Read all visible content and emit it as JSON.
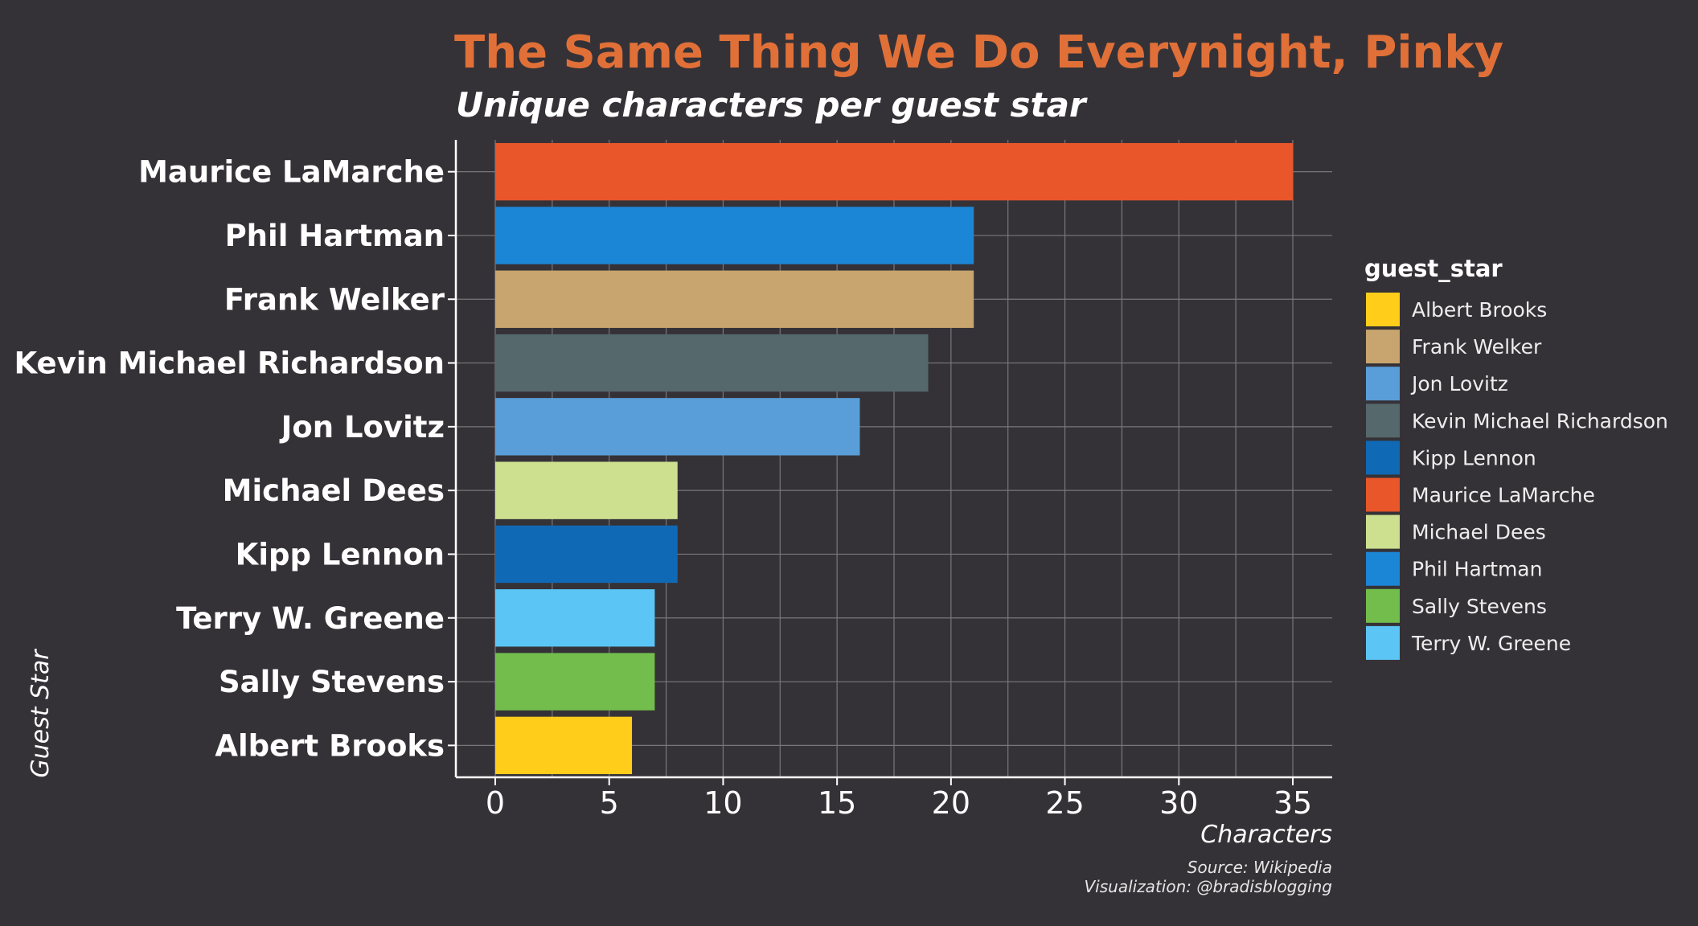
{
  "chart_data": {
    "type": "bar",
    "orientation": "horizontal",
    "title": "The Same Thing We Do Everynight, Pinky",
    "subtitle": "Unique characters per guest star",
    "xlabel": "Characters",
    "ylabel": "Guest Star",
    "xlim": [
      0,
      36
    ],
    "xticks": [
      "0",
      "5",
      "10",
      "15",
      "20",
      "25",
      "30",
      "35"
    ],
    "xtick_values": [
      0,
      5,
      10,
      15,
      20,
      25,
      30,
      35
    ],
    "categories": [
      "Maurice LaMarche",
      "Phil Hartman",
      "Frank Welker",
      "Kevin Michael Richardson",
      "Jon Lovitz",
      "Michael Dees",
      "Kipp Lennon",
      "Terry W. Greene",
      "Sally Stevens",
      "Albert Brooks"
    ],
    "values": [
      35,
      21,
      21,
      19,
      16,
      8,
      8,
      7,
      7,
      6
    ],
    "colors": {
      "Albert Brooks": "#ffcd1a",
      "Frank Welker": "#c8a46e",
      "Jon Lovitz": "#599ed8",
      "Kevin Michael Richardson": "#55686c",
      "Kipp Lennon": "#1069b5",
      "Maurice LaMarche": "#e8562a",
      "Michael Dees": "#cde08f",
      "Phil Hartman": "#1c86d6",
      "Sally Stevens": "#72bd4c",
      "Terry W. Greene": "#5bc5f5"
    },
    "legend": {
      "title": "guest_star",
      "position": "right",
      "entries": [
        "Albert Brooks",
        "Frank Welker",
        "Jon Lovitz",
        "Kevin Michael Richardson",
        "Kipp Lennon",
        "Maurice LaMarche",
        "Michael Dees",
        "Phil Hartman",
        "Sally Stevens",
        "Terry W. Greene"
      ]
    },
    "grid": true
  },
  "caption": {
    "source": "Source: Wikipedia",
    "credit": "Visualization: @bradisblogging"
  },
  "theme": {
    "background": "#353237",
    "title_color": "#e07038"
  }
}
